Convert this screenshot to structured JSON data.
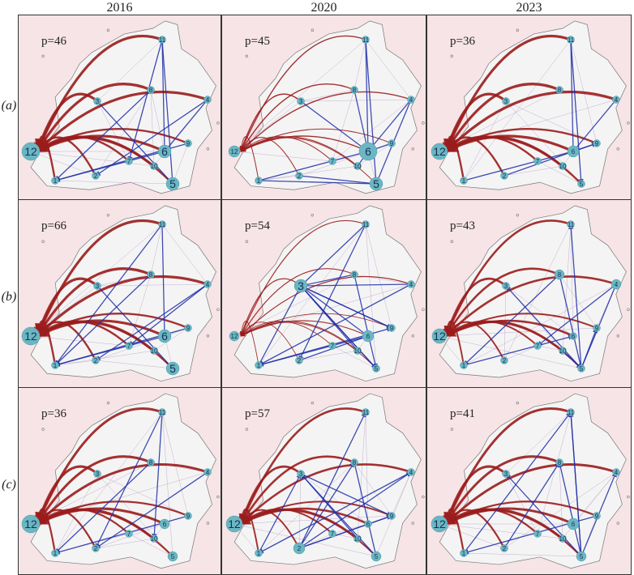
{
  "columns": [
    "2016",
    "2020",
    "2023"
  ],
  "rows": [
    {
      "label": "(a)",
      "p": [
        "p=46",
        "p=45",
        "p=36"
      ]
    },
    {
      "label": "(b)",
      "p": [
        "p=66",
        "p=54",
        "p=43"
      ]
    },
    {
      "label": "(c)",
      "p": [
        "p=36",
        "p=57",
        "p=41"
      ]
    }
  ],
  "node_labels": [
    "1",
    "2",
    "3",
    "4",
    "5",
    "6",
    "7",
    "8",
    "9",
    "10",
    "11",
    "12"
  ],
  "colors": {
    "outflow": "#9b1c1c",
    "inflow": "#1f2fa8",
    "node": "#6ab7c3",
    "background": "#f6e4e6",
    "land": "#f4f4f4"
  }
}
